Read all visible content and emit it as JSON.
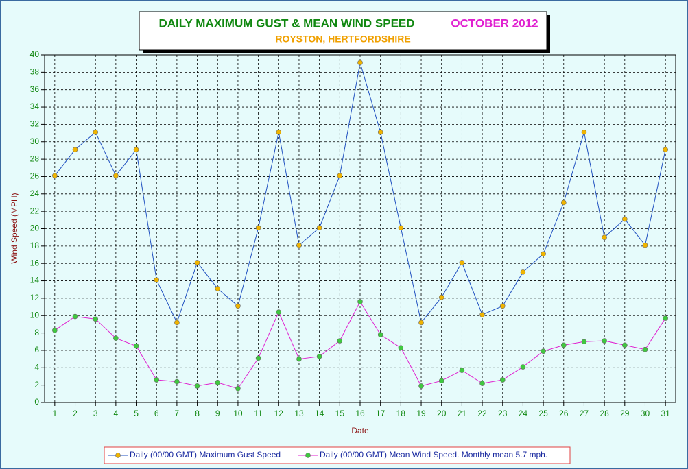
{
  "chart_data": {
    "type": "line",
    "title": "DAILY MAXIMUM GUST & MEAN WIND SPEED",
    "title_date": "OCTOBER 2012",
    "subtitle": "ROYSTON, HERTFORDSHIRE",
    "x_label": "Date",
    "y_label": "Wind Speed (MPH)",
    "categories": [
      "1",
      "2",
      "3",
      "4",
      "5",
      "6",
      "7",
      "8",
      "9",
      "10",
      "11",
      "12",
      "13",
      "14",
      "15",
      "16",
      "17",
      "18",
      "19",
      "20",
      "21",
      "22",
      "23",
      "24",
      "25",
      "26",
      "27",
      "28",
      "29",
      "30",
      "31"
    ],
    "series": [
      {
        "name": "Daily (00/00 GMT) Maximum Gust Speed",
        "color": "#2050c0",
        "marker_color": "#f0b400",
        "values": [
          26.1,
          29.1,
          31.1,
          26.1,
          29.1,
          14.1,
          9.2,
          16.1,
          13.1,
          11.1,
          20.1,
          31.1,
          18.1,
          20.1,
          26.1,
          39.1,
          31.1,
          20.1,
          9.2,
          12.1,
          16.1,
          10.1,
          11.1,
          15.0,
          17.1,
          23.0,
          31.1,
          19.0,
          21.1,
          18.1,
          29.1
        ]
      },
      {
        "name": "Daily (00/00 GMT) Mean Wind Speed. Monthly mean 5.7 mph.",
        "color": "#e020d0",
        "marker_color": "#40c840",
        "values": [
          8.3,
          9.9,
          9.6,
          7.4,
          6.5,
          2.6,
          2.4,
          1.9,
          2.3,
          1.6,
          5.1,
          10.4,
          5.0,
          5.3,
          7.1,
          11.6,
          7.8,
          6.3,
          1.9,
          2.5,
          3.7,
          2.2,
          2.6,
          4.1,
          5.9,
          6.6,
          7.0,
          7.1,
          6.6,
          6.1,
          9.7
        ]
      }
    ],
    "ylim": [
      0,
      40
    ],
    "yticks": [
      0,
      2,
      4,
      6,
      8,
      10,
      12,
      14,
      16,
      18,
      20,
      22,
      24,
      26,
      28,
      30,
      32,
      34,
      36,
      38,
      40
    ],
    "grid": true
  }
}
